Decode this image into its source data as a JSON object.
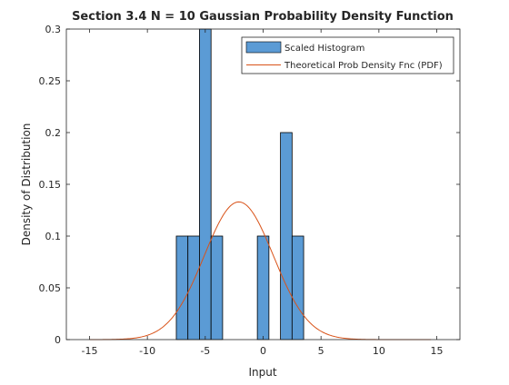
{
  "chart_data": {
    "type": "bar",
    "title": "Section 3.4 N = 10 Gaussian Probability Density Function",
    "xlabel": "Input",
    "ylabel": "Density of Distribution",
    "xlim": [
      -17,
      17
    ],
    "ylim": [
      0,
      0.3
    ],
    "xticks": [
      -15,
      -10,
      -5,
      0,
      5,
      10,
      15
    ],
    "xtick_labels": [
      "-15",
      "-10",
      "-5",
      "0",
      "5",
      "10",
      "15"
    ],
    "yticks": [
      0,
      0.05,
      0.1,
      0.15,
      0.2,
      0.25,
      0.3
    ],
    "ytick_labels": [
      "0",
      "0.05",
      "0.1",
      "0.15",
      "0.2",
      "0.25",
      "0.3"
    ],
    "grid": false,
    "legend_position": "top-right",
    "series": [
      {
        "name": "Scaled Histogram",
        "kind": "histogram",
        "color": "#5b9bd5",
        "edge_color": "#000000",
        "bin_edges": [
          -7.5,
          -6.5,
          -5.5,
          -4.5,
          -3.5,
          -0.5,
          0.5,
          1.5,
          2.5,
          3.5
        ],
        "bins": [
          {
            "x0": -7.5,
            "x1": -6.5,
            "value": 0.1
          },
          {
            "x0": -6.5,
            "x1": -5.5,
            "value": 0.1
          },
          {
            "x0": -5.5,
            "x1": -4.5,
            "value": 0.3
          },
          {
            "x0": -4.5,
            "x1": -3.5,
            "value": 0.1
          },
          {
            "x0": -0.5,
            "x1": 0.5,
            "value": 0.1
          },
          {
            "x0": 1.5,
            "x1": 2.5,
            "value": 0.2
          },
          {
            "x0": 2.5,
            "x1": 3.5,
            "value": 0.1
          }
        ]
      },
      {
        "name": "Theoretical Prob Density Fnc (PDF)",
        "kind": "line",
        "color": "#d95319",
        "gaussian": {
          "mean": -2.1,
          "std": 3.0
        },
        "x_range": [
          -15,
          14.5
        ]
      }
    ]
  }
}
